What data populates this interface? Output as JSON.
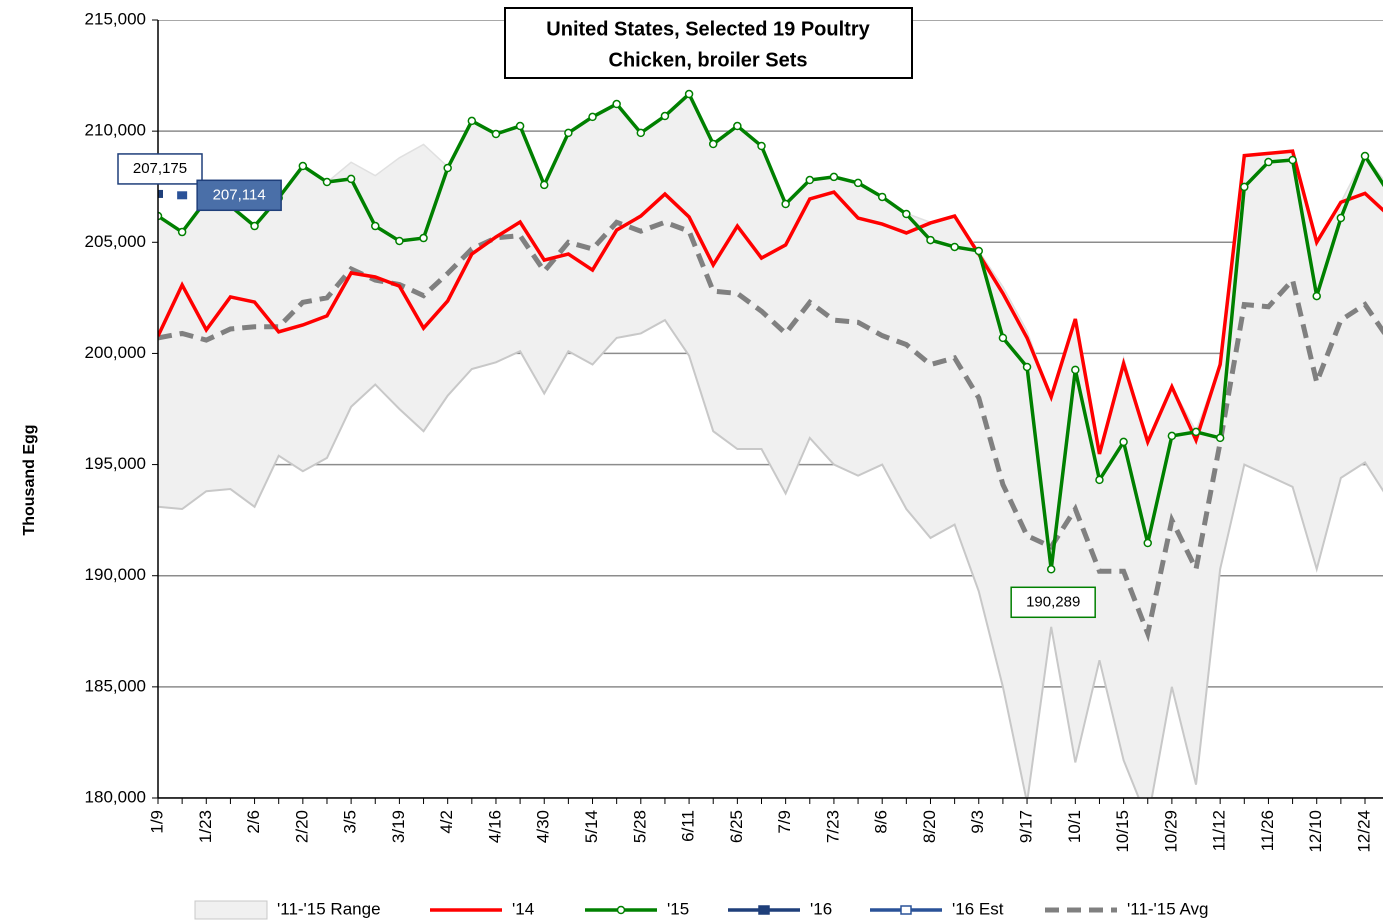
{
  "chart_data": {
    "type": "line",
    "title": [
      "United States, Selected 19 Poultry",
      "Chicken, broiler Sets"
    ],
    "ylabel": "Thousand Egg",
    "categories": [
      "1/9",
      null,
      "1/23",
      null,
      "2/6",
      null,
      "2/20",
      null,
      "3/5",
      null,
      "3/19",
      null,
      "4/2",
      null,
      "4/16",
      null,
      "4/30",
      null,
      "5/14",
      null,
      "5/28",
      null,
      "6/11",
      null,
      "6/25",
      null,
      "7/9",
      null,
      "7/23",
      null,
      "8/6",
      null,
      "8/20",
      null,
      "9/3",
      null,
      "9/17",
      null,
      "10/1",
      null,
      "10/15",
      null,
      "10/29",
      null,
      "11/12",
      null,
      "11/26",
      null,
      "12/10",
      null,
      "12/24",
      null
    ],
    "ylim": [
      180000,
      215000
    ],
    "yticks": [
      {
        "value": 180000,
        "label": "180,000"
      },
      {
        "value": 185000,
        "label": "185,000"
      },
      {
        "value": 190000,
        "label": "190,000"
      },
      {
        "value": 195000,
        "label": "195,000"
      },
      {
        "value": 200000,
        "label": "200,000"
      },
      {
        "value": 205000,
        "label": "205,000"
      },
      {
        "value": 210000,
        "label": "210,000"
      },
      {
        "value": 215000,
        "label": "215,000"
      }
    ],
    "grid": true,
    "legend": "bottom",
    "series": [
      {
        "name": "'11-'15 Range",
        "kind": "range",
        "color": "#f0f0f0",
        "low": [
          193100,
          193000,
          193800,
          193900,
          193100,
          195400,
          194700,
          195300,
          197600,
          198600,
          197500,
          196500,
          198100,
          199300,
          199600,
          200100,
          198200,
          200100,
          199500,
          200700,
          200900,
          201500,
          199900,
          196500,
          195700,
          195700,
          193700,
          196200,
          195000,
          194500,
          195000,
          193000,
          191700,
          192300,
          189300,
          185000,
          179800,
          187700,
          181600,
          186200,
          181700,
          179000,
          185000,
          180600,
          190300,
          195000,
          194500,
          194000,
          190300,
          194400,
          195100,
          193400
        ],
        "high": [
          206200,
          205500,
          206900,
          206700,
          205800,
          207000,
          208400,
          207700,
          208600,
          208000,
          208800,
          209400,
          208400,
          210500,
          209900,
          210300,
          207600,
          209900,
          210600,
          211200,
          209900,
          210700,
          211700,
          209400,
          210200,
          209300,
          206700,
          207800,
          208000,
          207700,
          207000,
          206300,
          205900,
          206200,
          204600,
          203000,
          201000,
          198000,
          201500,
          195500,
          199800,
          196000,
          198500,
          196500,
          199500,
          208900,
          209000,
          209100,
          205000,
          206800,
          208900,
          207500
        ]
      },
      {
        "name": "'14",
        "kind": "line",
        "color": "#ff0000",
        "values": [
          200780,
          203080,
          201060,
          202540,
          202310,
          200970,
          201280,
          201690,
          203620,
          203440,
          203030,
          201140,
          202360,
          204470,
          205240,
          205910,
          204200,
          204470,
          203750,
          205550,
          206180,
          207170,
          206140,
          203980,
          205730,
          204290,
          204880,
          206950,
          207260,
          206090,
          205820,
          205420,
          205870,
          206180,
          204470,
          202700,
          200700,
          198040,
          201550,
          195480,
          199540,
          196020,
          198500,
          196100,
          199500,
          208900,
          209000,
          209100,
          205000,
          206800,
          207200,
          206200
        ]
      },
      {
        "name": "'15",
        "kind": "marker-line",
        "color": "#008000",
        "values": [
          206180,
          205460,
          206900,
          206630,
          205730,
          207000,
          208430,
          207710,
          207850,
          205730,
          205060,
          205190,
          208340,
          210460,
          209870,
          210230,
          207580,
          209920,
          210640,
          211220,
          209920,
          210680,
          211670,
          209420,
          210230,
          209330,
          206720,
          207800,
          207940,
          207670,
          207040,
          206270,
          205100,
          204790,
          204610,
          200700,
          199390,
          190289,
          199260,
          194310,
          196020,
          191470,
          196290,
          196470,
          196200,
          207490,
          208610,
          208700,
          202580,
          206090,
          208880,
          207200
        ],
        "value_labels": [
          null,
          null,
          null,
          null,
          null,
          null,
          null,
          null,
          null,
          null,
          null,
          null,
          null,
          null,
          null,
          null,
          null,
          null,
          null,
          null,
          null,
          null,
          null,
          null,
          null,
          null,
          null,
          null,
          null,
          null,
          null,
          null,
          null,
          null,
          null,
          null,
          null,
          "190,289",
          null,
          null,
          null,
          null,
          null,
          null,
          null,
          null,
          null,
          null,
          null,
          null,
          null,
          null
        ]
      },
      {
        "name": "'16",
        "kind": "point",
        "color": "#1f3f7a",
        "values": [
          207175,
          null,
          null,
          null,
          null,
          null,
          null,
          null,
          null,
          null,
          null,
          null,
          null,
          null,
          null,
          null,
          null,
          null,
          null,
          null,
          null,
          null,
          null,
          null,
          null,
          null,
          null,
          null,
          null,
          null,
          null,
          null,
          null,
          null,
          null,
          null,
          null,
          null,
          null,
          null,
          null,
          null,
          null,
          null,
          null,
          null,
          null,
          null,
          null,
          null,
          null,
          null
        ],
        "value_labels": [
          "207,175",
          null,
          null,
          null,
          null,
          null,
          null,
          null,
          null,
          null,
          null,
          null,
          null,
          null,
          null,
          null,
          null,
          null,
          null,
          null,
          null,
          null,
          null,
          null,
          null,
          null,
          null,
          null,
          null,
          null,
          null,
          null,
          null,
          null,
          null,
          null,
          null,
          null,
          null,
          null,
          null,
          null,
          null,
          null,
          null,
          null,
          null,
          null,
          null,
          null,
          null,
          null
        ]
      },
      {
        "name": "'16 Est",
        "kind": "point",
        "color": "#2a5298",
        "values": [
          null,
          207114,
          null,
          null,
          null,
          null,
          null,
          null,
          null,
          null,
          null,
          null,
          null,
          null,
          null,
          null,
          null,
          null,
          null,
          null,
          null,
          null,
          null,
          null,
          null,
          null,
          null,
          null,
          null,
          null,
          null,
          null,
          null,
          null,
          null,
          null,
          null,
          null,
          null,
          null,
          null,
          null,
          null,
          null,
          null,
          null,
          null,
          null,
          null,
          null,
          null,
          null
        ],
        "value_labels": [
          null,
          "207,114",
          null,
          null,
          null,
          null,
          null,
          null,
          null,
          null,
          null,
          null,
          null,
          null,
          null,
          null,
          null,
          null,
          null,
          null,
          null,
          null,
          null,
          null,
          null,
          null,
          null,
          null,
          null,
          null,
          null,
          null,
          null,
          null,
          null,
          null,
          null,
          null,
          null,
          null,
          null,
          null,
          null,
          null,
          null,
          null,
          null,
          null,
          null,
          null,
          null,
          null
        ]
      },
      {
        "name": "'11-'15 Avg",
        "kind": "dashed",
        "color": "#808080",
        "values": [
          200700,
          200900,
          200600,
          201100,
          201200,
          201200,
          202300,
          202500,
          203800,
          203300,
          203100,
          202600,
          203600,
          204700,
          205200,
          205300,
          203700,
          205000,
          204700,
          205900,
          205500,
          205900,
          205500,
          202800,
          202700,
          201900,
          200900,
          202300,
          201500,
          201400,
          200800,
          200400,
          199500,
          199800,
          198000,
          194100,
          191800,
          191300,
          193000,
          190200,
          190200,
          187400,
          192500,
          190300,
          196000,
          202200,
          202100,
          203300,
          198700,
          201500,
          202200,
          200600
        ]
      }
    ]
  }
}
